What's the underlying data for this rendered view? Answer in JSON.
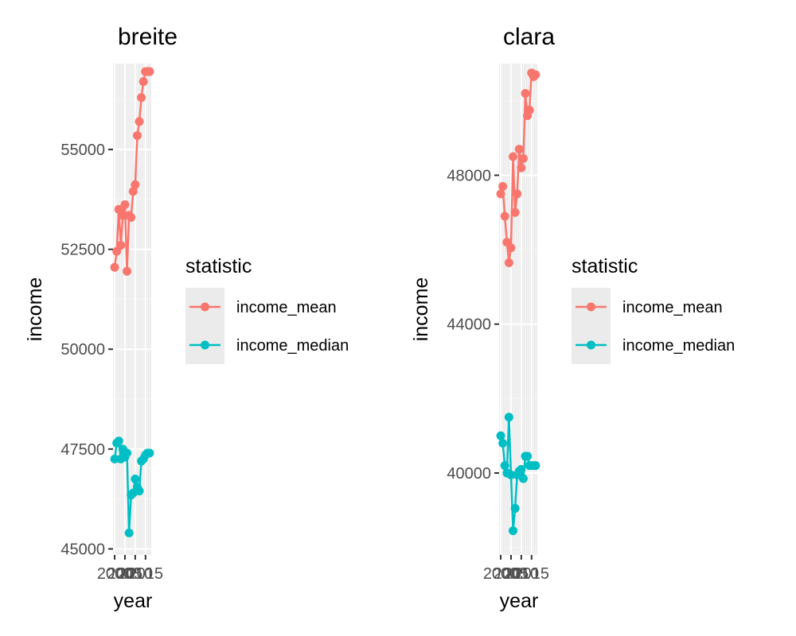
{
  "chart_data": [
    {
      "type": "line",
      "title": "breite",
      "xlabel": "year",
      "ylabel": "income",
      "x": [
        2000,
        2001,
        2002,
        2003,
        2004,
        2005,
        2006,
        2007,
        2008,
        2009,
        2010,
        2011,
        2012,
        2013,
        2014,
        2015,
        2016,
        2017
      ],
      "xticks": [
        2000,
        2005,
        2010,
        2015
      ],
      "xtick_labels": [
        "2000",
        "2005",
        "2010",
        "2015"
      ],
      "xlim": [
        1999.2,
        2017.8
      ],
      "yticks": [
        45000,
        47500,
        50000,
        52500,
        55000
      ],
      "ytick_labels": [
        "45000",
        "47500",
        "50000",
        "52500",
        "55000"
      ],
      "ylim": [
        44850,
        57150
      ],
      "series": [
        {
          "name": "income_mean",
          "color": "#F8766D",
          "values": [
            52050,
            52450,
            53500,
            52600,
            53350,
            53620,
            51950,
            53350,
            53300,
            53950,
            54120,
            55350,
            55700,
            56300,
            56700,
            56950,
            56950,
            56950
          ]
        },
        {
          "name": "income_median",
          "color": "#00BFC4",
          "values": [
            47250,
            47650,
            47700,
            47250,
            47500,
            47300,
            47400,
            45400,
            46350,
            46400,
            46750,
            46550,
            46450,
            47200,
            47250,
            47350,
            47400,
            47400
          ]
        }
      ],
      "grid": true,
      "legend": {
        "title": "statistic",
        "position": "right",
        "entries": [
          "income_mean",
          "income_median"
        ]
      }
    },
    {
      "type": "line",
      "title": "clara",
      "xlabel": "year",
      "ylabel": "income",
      "x": [
        2000,
        2001,
        2002,
        2003,
        2004,
        2005,
        2006,
        2007,
        2008,
        2009,
        2010,
        2011,
        2012,
        2013,
        2014,
        2015,
        2016,
        2017
      ],
      "xticks": [
        2000,
        2005,
        2010,
        2015
      ],
      "xtick_labels": [
        "2000",
        "2005",
        "2010",
        "2015"
      ],
      "xlim": [
        1999.2,
        2017.8
      ],
      "yticks": [
        40000,
        44000,
        48000
      ],
      "ytick_labels": [
        "40000",
        "44000",
        "48000"
      ],
      "ylim": [
        37800,
        51000
      ],
      "series": [
        {
          "name": "income_mean",
          "color": "#F8766D",
          "values": [
            47500,
            47700,
            46900,
            46200,
            45650,
            46050,
            48500,
            47000,
            47500,
            48700,
            48200,
            48450,
            50200,
            49600,
            49750,
            50750,
            50650,
            50700
          ]
        },
        {
          "name": "income_median",
          "color": "#00BFC4",
          "values": [
            41000,
            40800,
            40200,
            40000,
            41500,
            39950,
            38450,
            39050,
            39950,
            40050,
            40100,
            39850,
            40450,
            40450,
            40200,
            40200,
            40200,
            40200
          ]
        }
      ],
      "grid": true,
      "legend": {
        "title": "statistic",
        "position": "right",
        "entries": [
          "income_mean",
          "income_median"
        ]
      }
    }
  ]
}
